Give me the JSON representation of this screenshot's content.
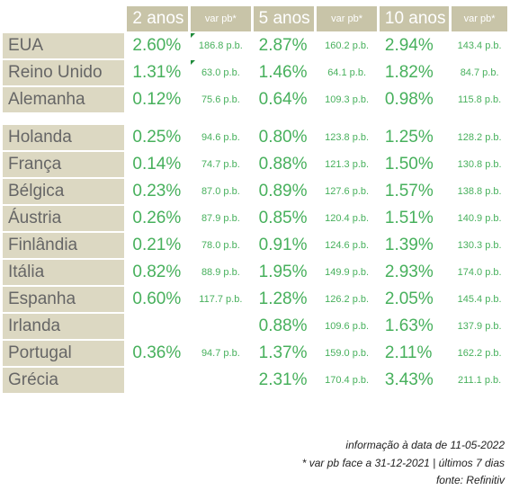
{
  "header": {
    "col_2y": "2 anos",
    "col_2y_var": "var pb*",
    "col_5y": "5 anos",
    "col_5y_var": "var pb*",
    "col_10y": "10 anos",
    "col_10y_var": "var pb*"
  },
  "groups": [
    {
      "rows": [
        {
          "country": "EUA",
          "y2": "2.60%",
          "y2_var": "186.8 p.b.",
          "y5": "2.87%",
          "y5_var": "160.2 p.b.",
          "y10": "2.94%",
          "y10_var": "143.4 p.b.",
          "flag": true
        },
        {
          "country": "Reino Unido",
          "y2": "1.31%",
          "y2_var": "63.0 p.b.",
          "y5": "1.46%",
          "y5_var": "64.1 p.b.",
          "y10": "1.82%",
          "y10_var": "84.7 p.b.",
          "flag": true
        },
        {
          "country": "Alemanha",
          "y2": "0.12%",
          "y2_var": "75.6 p.b.",
          "y5": "0.64%",
          "y5_var": "109.3 p.b.",
          "y10": "0.98%",
          "y10_var": "115.8 p.b.",
          "flag": false
        }
      ]
    },
    {
      "rows": [
        {
          "country": "Holanda",
          "y2": "0.25%",
          "y2_var": "94.6 p.b.",
          "y5": "0.80%",
          "y5_var": "123.8 p.b.",
          "y10": "1.25%",
          "y10_var": "128.2 p.b.",
          "flag": false
        },
        {
          "country": "França",
          "y2": "0.14%",
          "y2_var": "74.7 p.b.",
          "y5": "0.88%",
          "y5_var": "121.3 p.b.",
          "y10": "1.50%",
          "y10_var": "130.8 p.b.",
          "flag": false
        },
        {
          "country": "Bélgica",
          "y2": "0.23%",
          "y2_var": "87.0 p.b.",
          "y5": "0.89%",
          "y5_var": "127.6 p.b.",
          "y10": "1.57%",
          "y10_var": "138.8 p.b.",
          "flag": false
        },
        {
          "country": "Áustria",
          "y2": "0.26%",
          "y2_var": "87.9 p.b.",
          "y5": "0.85%",
          "y5_var": "120.4 p.b.",
          "y10": "1.51%",
          "y10_var": "140.9 p.b.",
          "flag": false
        },
        {
          "country": "Finlândia",
          "y2": "0.21%",
          "y2_var": "78.0 p.b.",
          "y5": "0.91%",
          "y5_var": "124.6 p.b.",
          "y10": "1.39%",
          "y10_var": "130.3 p.b.",
          "flag": false
        },
        {
          "country": "Itália",
          "y2": "0.82%",
          "y2_var": "88.9 p.b.",
          "y5": "1.95%",
          "y5_var": "149.9 p.b.",
          "y10": "2.93%",
          "y10_var": "174.0 p.b.",
          "flag": false
        },
        {
          "country": "Espanha",
          "y2": "0.60%",
          "y2_var": "117.7 p.b.",
          "y5": "1.28%",
          "y5_var": "126.2 p.b.",
          "y10": "2.05%",
          "y10_var": "145.4 p.b.",
          "flag": false
        },
        {
          "country": "Irlanda",
          "y2": "",
          "y2_var": "",
          "y5": "0.88%",
          "y5_var": "109.6 p.b.",
          "y10": "1.63%",
          "y10_var": "137.9 p.b.",
          "flag": false
        },
        {
          "country": "Portugal",
          "y2": "0.36%",
          "y2_var": "94.7 p.b.",
          "y5": "1.37%",
          "y5_var": "159.0 p.b.",
          "y10": "2.11%",
          "y10_var": "162.2 p.b.",
          "flag": false
        },
        {
          "country": "Grécia",
          "y2": "",
          "y2_var": "",
          "y5": "2.31%",
          "y5_var": "170.4 p.b.",
          "y10": "3.43%",
          "y10_var": "211.1 p.b.",
          "flag": false
        }
      ]
    }
  ],
  "footnotes": {
    "line1": "informação à data de 11-05-2022",
    "line2": "* var pb face a 31-12-2021 | últimos 7 dias",
    "line3": "fonte: Refinitiv"
  },
  "colors": {
    "header_bg": "#c8c4a8",
    "country_bg": "#dcd8c2",
    "value_text": "#47b05c",
    "flag_marker": "#1e8a3a"
  }
}
